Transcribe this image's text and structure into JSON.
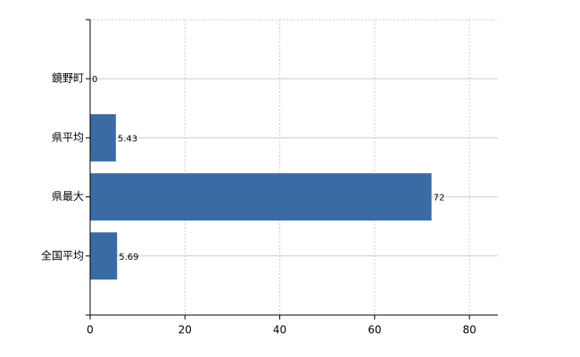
{
  "chart_data": {
    "type": "hbar",
    "categories": [
      "鏡野町",
      "県平均",
      "県最大",
      "全国平均"
    ],
    "values": [
      0,
      5.43,
      72,
      5.69
    ],
    "color": "#3a6ba5",
    "xlim": [
      0,
      86
    ],
    "xticks": [
      0,
      20,
      40,
      60,
      80
    ],
    "grid": true
  }
}
